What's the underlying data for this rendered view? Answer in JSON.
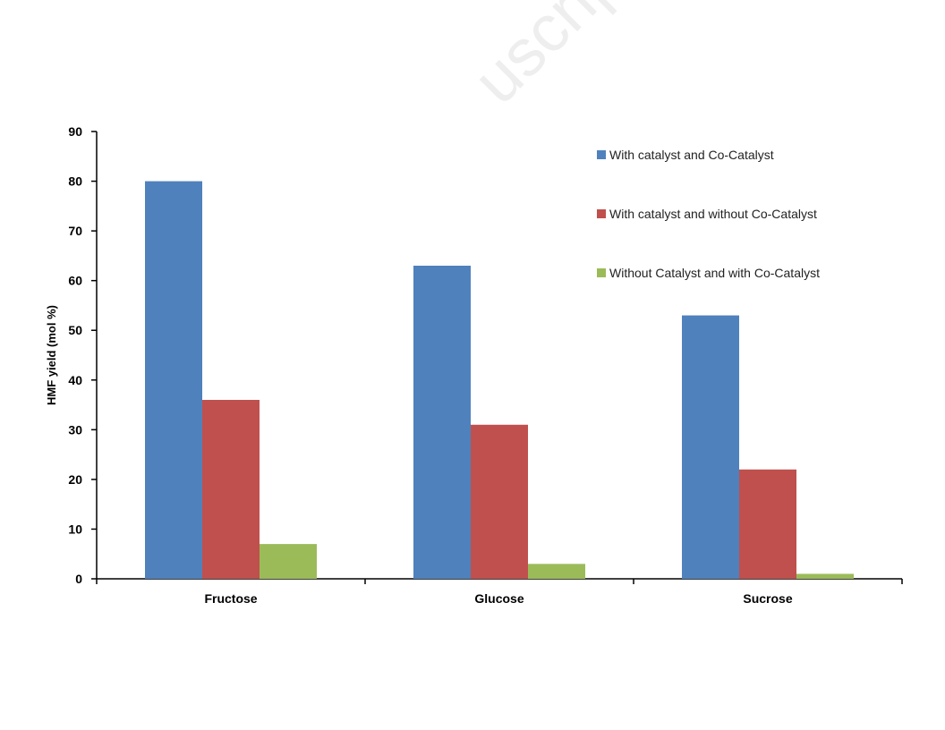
{
  "chart_data": {
    "type": "bar",
    "title": "",
    "xlabel": "",
    "ylabel": "HMF yield (mol %)",
    "categories": [
      "Fructose",
      "Glucose",
      "Sucrose"
    ],
    "series": [
      {
        "name": "With catalyst and Co-Catalyst",
        "color": "#4F81BD",
        "values": [
          80,
          63,
          53
        ]
      },
      {
        "name": "With catalyst and without Co-Catalyst",
        "color": "#C0504D",
        "values": [
          36,
          31,
          22
        ]
      },
      {
        "name": "Without Catalyst and with Co-Catalyst",
        "color": "#9BBB59",
        "values": [
          7,
          3,
          1
        ]
      }
    ],
    "ylim": [
      0,
      90
    ],
    "yticks": [
      0,
      10,
      20,
      30,
      40,
      50,
      60,
      70,
      80,
      90
    ],
    "grid": false,
    "legend_position": "top-right"
  }
}
